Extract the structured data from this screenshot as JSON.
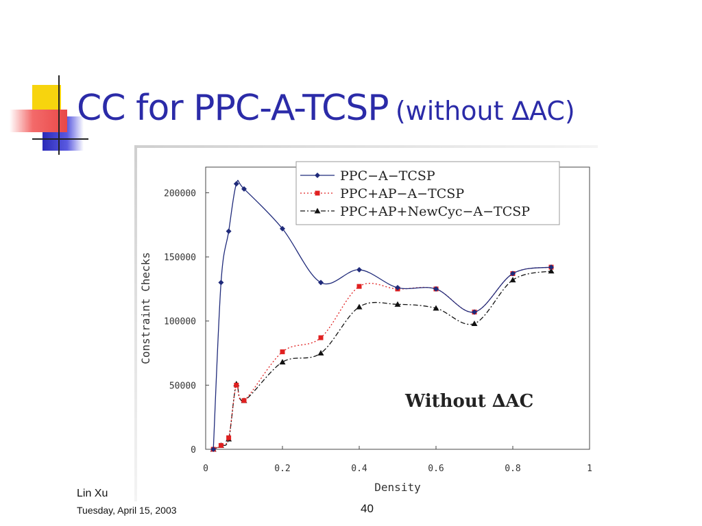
{
  "slide": {
    "title_main": "CC for PPC-A-TCSP",
    "title_sub": "(without ∆AC)",
    "author": "Lin Xu",
    "date": "Tuesday, April 15, 2003",
    "page_number": "40"
  },
  "colors": {
    "title": "#2b2ba8",
    "deco_yellow": "#f7d40e",
    "deco_blue": "#3c3cc8",
    "deco_red": "#f25050"
  },
  "chart_data": {
    "type": "line",
    "title": "",
    "xlabel": "Density",
    "ylabel": "Constraint Checks",
    "xlim": [
      0,
      1
    ],
    "ylim": [
      0,
      220000
    ],
    "xticks": [
      0,
      0.2,
      0.4,
      0.6,
      0.8,
      1
    ],
    "xtick_labels": [
      "0",
      "0.2",
      "0.4",
      "0.6",
      "0.8",
      "1"
    ],
    "yticks": [
      0,
      50000,
      100000,
      150000,
      200000
    ],
    "ytick_labels": [
      "0",
      "50000",
      "100000",
      "150000",
      "200000"
    ],
    "grid": false,
    "legend_position": "top-right",
    "annotation": "Without ∆AC",
    "x": [
      0.02,
      0.04,
      0.06,
      0.08,
      0.1,
      0.2,
      0.3,
      0.4,
      0.5,
      0.6,
      0.7,
      0.8,
      0.9
    ],
    "series": [
      {
        "name": "PPC−A−TCSP",
        "color": "#1f2a7a",
        "marker": "diamond",
        "dash": "solid",
        "values": [
          0,
          130000,
          170000,
          207000,
          203000,
          172000,
          130000,
          140000,
          126000,
          125000,
          107000,
          137000,
          142000
        ]
      },
      {
        "name": "PPC+AP−A−TCSP",
        "color": "#e02020",
        "marker": "square",
        "dash": "dotted",
        "values": [
          0,
          3000,
          9000,
          50000,
          38000,
          76000,
          87000,
          127000,
          125000,
          125000,
          107000,
          137000,
          142000
        ]
      },
      {
        "name": "PPC+AP+NewCyc−A−TCSP",
        "color": "#111111",
        "marker": "triangle",
        "dash": "dashdot",
        "values": [
          0,
          3000,
          8000,
          51000,
          38000,
          68000,
          75000,
          111000,
          113000,
          110000,
          98000,
          132000,
          139000
        ]
      }
    ]
  }
}
